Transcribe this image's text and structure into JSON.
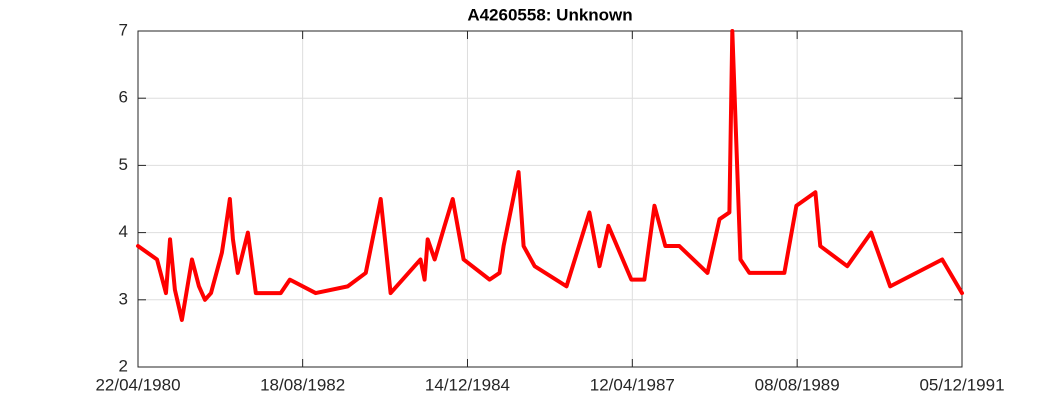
{
  "chart_data": {
    "type": "line",
    "title": "A4260558: Unknown",
    "x": [
      "1980-04-22",
      "1980-07-29",
      "1980-09-13",
      "1980-10-04",
      "1980-10-29",
      "1980-12-04",
      "1981-01-25",
      "1981-03-02",
      "1981-04-02",
      "1981-05-03",
      "1981-06-28",
      "1981-07-14",
      "1981-08-08",
      "1981-08-24",
      "1981-09-18",
      "1981-11-09",
      "1981-12-20",
      "1982-04-27",
      "1982-06-13",
      "1982-10-24",
      "1983-04-07",
      "1983-07-09",
      "1983-09-24",
      "1983-11-14",
      "1984-04-16",
      "1984-05-07",
      "1984-05-23",
      "1984-06-28",
      "1984-08-18",
      "1984-09-29",
      "1984-11-24",
      "1985-04-07",
      "1985-05-28",
      "1985-06-18",
      "1985-09-03",
      "1985-09-29",
      "1985-11-25",
      "1986-05-08",
      "1986-09-03",
      "1986-10-25",
      "1986-12-10",
      "1987-04-07",
      "1987-06-13",
      "1987-08-04",
      "1987-09-29",
      "1987-12-10",
      "1988-05-03",
      "1988-07-04",
      "1988-08-24",
      "1988-09-08",
      "1988-10-20",
      "1988-12-05",
      "1989-06-03",
      "1989-08-04",
      "1989-11-10",
      "1989-12-05",
      "1990-04-23",
      "1990-08-24",
      "1990-11-30",
      "1991-08-25",
      "1991-12-05"
    ],
    "series": [
      {
        "name": "A4260558",
        "color": "#ff0000",
        "values": [
          3.8,
          3.6,
          3.1,
          3.9,
          3.15,
          2.7,
          3.6,
          3.2,
          3.0,
          3.1,
          3.7,
          4.0,
          4.5,
          3.9,
          3.4,
          4.0,
          3.1,
          3.1,
          3.3,
          3.1,
          3.2,
          3.4,
          4.5,
          3.1,
          3.6,
          3.3,
          3.9,
          3.6,
          4.1,
          4.5,
          3.6,
          3.3,
          3.4,
          3.8,
          4.9,
          3.8,
          3.5,
          3.2,
          4.3,
          3.5,
          4.1,
          3.3,
          3.3,
          4.4,
          3.8,
          3.8,
          3.4,
          4.2,
          4.3,
          7.0,
          3.6,
          3.4,
          3.4,
          4.4,
          4.6,
          3.8,
          3.5,
          4.0,
          3.2,
          3.6,
          3.1
        ]
      }
    ],
    "xlim": [
      "1980-04-22",
      "1991-12-05"
    ],
    "xticks": [
      {
        "value": "1980-04-22",
        "label": "22/04/1980"
      },
      {
        "value": "1982-08-18",
        "label": "18/08/1982"
      },
      {
        "value": "1984-12-14",
        "label": "14/12/1984"
      },
      {
        "value": "1987-04-12",
        "label": "12/04/1987"
      },
      {
        "value": "1989-08-08",
        "label": "08/08/1989"
      },
      {
        "value": "1991-12-05",
        "label": "05/12/1991"
      }
    ],
    "ylim": [
      2,
      7
    ],
    "yticks": [
      2,
      3,
      4,
      5,
      6,
      7
    ],
    "grid": true
  }
}
